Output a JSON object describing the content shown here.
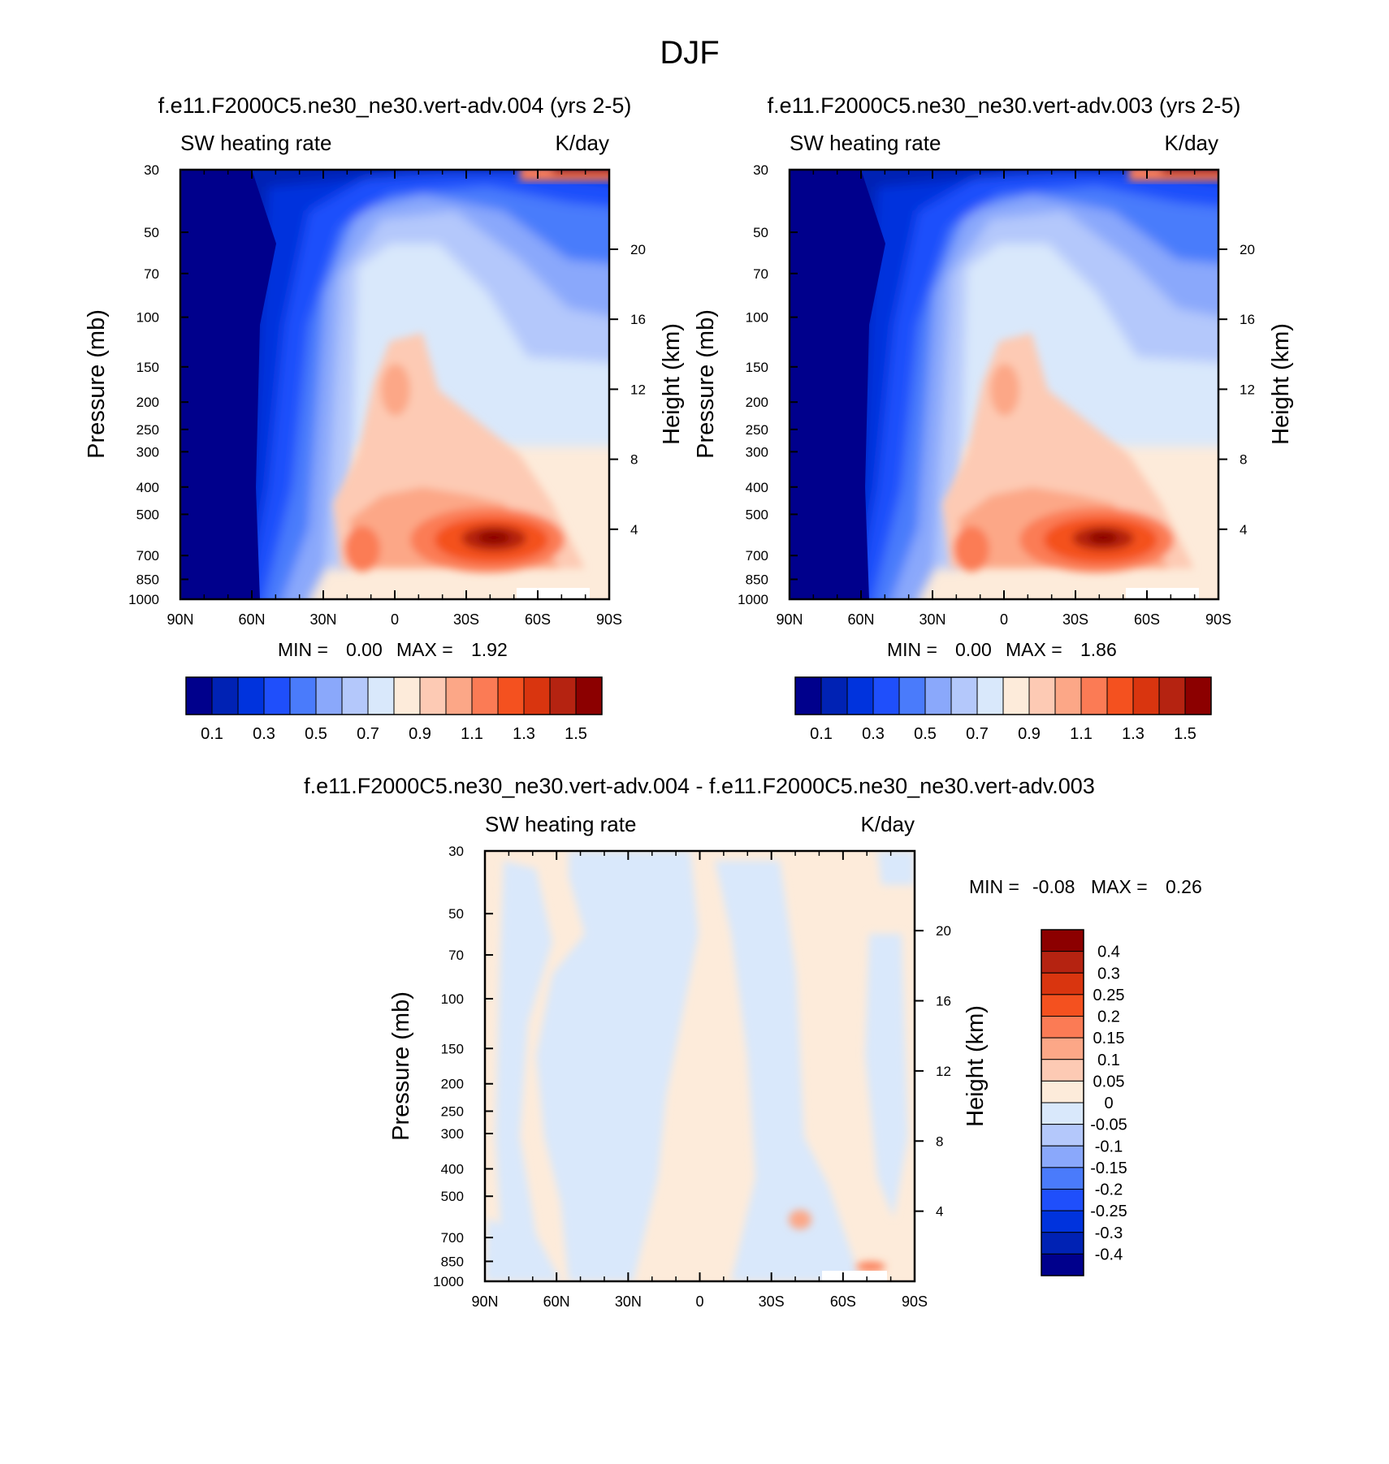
{
  "figure": {
    "title": "DJF"
  },
  "colorbar_colors": {
    "upper": [
      "#00008c",
      "#0022b4",
      "#0033dd",
      "#1f4ffb",
      "#4a7bfb",
      "#8aa8fb",
      "#b4c8fb",
      "#d9e8fb",
      "#fdebda",
      "#fdcab4",
      "#fca787",
      "#fb7b55",
      "#f4511f",
      "#d9350f",
      "#b52311",
      "#8c0000"
    ],
    "diff": [
      "#00008c",
      "#0022b4",
      "#0033dd",
      "#1f4ffb",
      "#4a7bfb",
      "#8aa8fb",
      "#b4c8fb",
      "#d9e8fb",
      "#fdebda",
      "#fdcab4",
      "#fca787",
      "#fb7b55",
      "#f4511f",
      "#d9350f",
      "#b52311",
      "#8c0000"
    ]
  },
  "chart_data": [
    {
      "type": "heatmap",
      "title": "f.e11.F2000C5.ne30_ne30.vert-adv.004 (yrs 2-5)",
      "left_string": "SW heating rate",
      "right_string": "K/day",
      "ylabel": "Pressure (mb)",
      "ylabel_right": "Height (km)",
      "x_ticks": [
        "90N",
        "60N",
        "30N",
        "0",
        "30S",
        "60S",
        "90S"
      ],
      "y_ticks": [
        "30",
        "50",
        "70",
        "100",
        "150",
        "200",
        "250",
        "300",
        "400",
        "500",
        "700",
        "850",
        "1000"
      ],
      "y_right_ticks": [
        "20",
        "16",
        "12",
        "8",
        "4"
      ],
      "ylim": [
        1000,
        30
      ],
      "xlim": [
        90,
        -90
      ],
      "y_scale": "log",
      "stats": {
        "min_label": "MIN =",
        "min": "0.00",
        "max_label": "MAX =",
        "max": "1.92"
      },
      "colorbar": {
        "orientation": "horizontal",
        "labels": [
          "0.1",
          "0.3",
          "0.5",
          "0.7",
          "0.9",
          "1.1",
          "1.3",
          "1.5"
        ]
      }
    },
    {
      "type": "heatmap",
      "title": "f.e11.F2000C5.ne30_ne30.vert-adv.003 (yrs 2-5)",
      "left_string": "SW heating rate",
      "right_string": "K/day",
      "ylabel": "Pressure (mb)",
      "ylabel_right": "Height (km)",
      "x_ticks": [
        "90N",
        "60N",
        "30N",
        "0",
        "30S",
        "60S",
        "90S"
      ],
      "y_ticks": [
        "30",
        "50",
        "70",
        "100",
        "150",
        "200",
        "250",
        "300",
        "400",
        "500",
        "700",
        "850",
        "1000"
      ],
      "y_right_ticks": [
        "20",
        "16",
        "12",
        "8",
        "4"
      ],
      "ylim": [
        1000,
        30
      ],
      "xlim": [
        90,
        -90
      ],
      "y_scale": "log",
      "stats": {
        "min_label": "MIN =",
        "min": "0.00",
        "max_label": "MAX =",
        "max": "1.86"
      },
      "colorbar": {
        "orientation": "horizontal",
        "labels": [
          "0.1",
          "0.3",
          "0.5",
          "0.7",
          "0.9",
          "1.1",
          "1.3",
          "1.5"
        ]
      }
    },
    {
      "type": "heatmap",
      "title": "f.e11.F2000C5.ne30_ne30.vert-adv.004 - f.e11.F2000C5.ne30_ne30.vert-adv.003",
      "left_string": "SW heating rate",
      "right_string": "K/day",
      "ylabel": "Pressure (mb)",
      "ylabel_right": "Height (km)",
      "x_ticks": [
        "90N",
        "60N",
        "30N",
        "0",
        "30S",
        "60S",
        "90S"
      ],
      "y_ticks": [
        "30",
        "50",
        "70",
        "100",
        "150",
        "200",
        "250",
        "300",
        "400",
        "500",
        "700",
        "850",
        "1000"
      ],
      "y_right_ticks": [
        "20",
        "16",
        "12",
        "8",
        "4"
      ],
      "ylim": [
        1000,
        30
      ],
      "xlim": [
        90,
        -90
      ],
      "y_scale": "log",
      "stats": {
        "min_label": "MIN =",
        "min": "-0.08",
        "max_label": "MAX =",
        "max": "0.26"
      },
      "colorbar": {
        "orientation": "vertical",
        "labels": [
          "0.4",
          "0.3",
          "0.25",
          "0.2",
          "0.15",
          "0.1",
          "0.05",
          "0",
          "-0.05",
          "-0.1",
          "-0.15",
          "-0.2",
          "-0.25",
          "-0.3",
          "-0.4"
        ]
      }
    }
  ]
}
